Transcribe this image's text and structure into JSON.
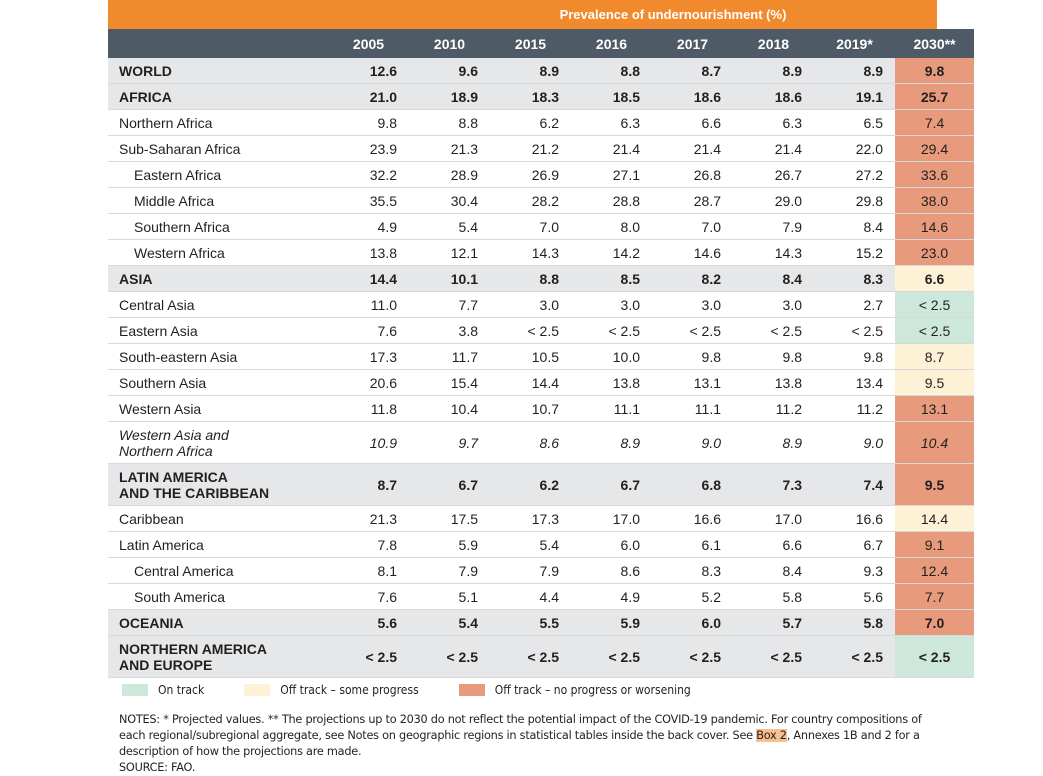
{
  "header": {
    "title": "Prevalence of undernourishment (%)",
    "columns": [
      "2005",
      "2010",
      "2015",
      "2016",
      "2017",
      "2018",
      "2019*",
      "2030**"
    ]
  },
  "rows": [
    {
      "label": "WORLD",
      "values": [
        "12.6",
        "9.6",
        "8.9",
        "8.8",
        "8.7",
        "8.9",
        "8.9"
      ],
      "proj": "9.8"
    },
    {
      "label": "AFRICA",
      "values": [
        "21.0",
        "18.9",
        "18.3",
        "18.5",
        "18.6",
        "18.6",
        "19.1"
      ],
      "proj": "25.7"
    },
    {
      "label": "Northern Africa",
      "values": [
        "9.8",
        "8.8",
        "6.2",
        "6.3",
        "6.6",
        "6.3",
        "6.5"
      ],
      "proj": "7.4"
    },
    {
      "label": "Sub-Saharan Africa",
      "values": [
        "23.9",
        "21.3",
        "21.2",
        "21.4",
        "21.4",
        "21.4",
        "22.0"
      ],
      "proj": "29.4"
    },
    {
      "label": "Eastern Africa",
      "values": [
        "32.2",
        "28.9",
        "26.9",
        "27.1",
        "26.8",
        "26.7",
        "27.2"
      ],
      "proj": "33.6"
    },
    {
      "label": "Middle Africa",
      "values": [
        "35.5",
        "30.4",
        "28.2",
        "28.8",
        "28.7",
        "29.0",
        "29.8"
      ],
      "proj": "38.0"
    },
    {
      "label": "Southern Africa",
      "values": [
        "4.9",
        "5.4",
        "7.0",
        "8.0",
        "7.0",
        "7.9",
        "8.4"
      ],
      "proj": "14.6"
    },
    {
      "label": "Western Africa",
      "values": [
        "13.8",
        "12.1",
        "14.3",
        "14.2",
        "14.6",
        "14.3",
        "15.2"
      ],
      "proj": "23.0"
    },
    {
      "label": "ASIA",
      "values": [
        "14.4",
        "10.1",
        "8.8",
        "8.5",
        "8.2",
        "8.4",
        "8.3"
      ],
      "proj": "6.6"
    },
    {
      "label": "Central Asia",
      "values": [
        "11.0",
        "7.7",
        "3.0",
        "3.0",
        "3.0",
        "3.0",
        "2.7"
      ],
      "proj": "< 2.5"
    },
    {
      "label": "Eastern Asia",
      "values": [
        "7.6",
        "3.8",
        "< 2.5",
        "< 2.5",
        "< 2.5",
        "< 2.5",
        "< 2.5"
      ],
      "proj": "< 2.5"
    },
    {
      "label": "South-eastern Asia",
      "values": [
        "17.3",
        "11.7",
        "10.5",
        "10.0",
        "9.8",
        "9.8",
        "9.8"
      ],
      "proj": "8.7"
    },
    {
      "label": "Southern Asia",
      "values": [
        "20.6",
        "15.4",
        "14.4",
        "13.8",
        "13.1",
        "13.8",
        "13.4"
      ],
      "proj": "9.5"
    },
    {
      "label": "Western Asia",
      "values": [
        "11.8",
        "10.4",
        "10.7",
        "11.1",
        "11.1",
        "11.2",
        "11.2"
      ],
      "proj": "13.1"
    },
    {
      "label_line1": "Western Asia and",
      "label_line2": "Northern Africa",
      "values": [
        "10.9",
        "9.7",
        "8.6",
        "8.9",
        "9.0",
        "8.9",
        "9.0"
      ],
      "proj": "10.4"
    },
    {
      "label_line1": "LATIN AMERICA",
      "label_line2": "AND THE CARIBBEAN",
      "values": [
        "8.7",
        "6.7",
        "6.2",
        "6.7",
        "6.8",
        "7.3",
        "7.4"
      ],
      "proj": "9.5"
    },
    {
      "label": "Caribbean",
      "values": [
        "21.3",
        "17.5",
        "17.3",
        "17.0",
        "16.6",
        "17.0",
        "16.6"
      ],
      "proj": "14.4"
    },
    {
      "label": "Latin America",
      "values": [
        "7.8",
        "5.9",
        "5.4",
        "6.0",
        "6.1",
        "6.6",
        "6.7"
      ],
      "proj": "9.1"
    },
    {
      "label": "Central America",
      "values": [
        "8.1",
        "7.9",
        "7.9",
        "8.6",
        "8.3",
        "8.4",
        "9.3"
      ],
      "proj": "12.4"
    },
    {
      "label": "South America",
      "values": [
        "7.6",
        "5.1",
        "4.4",
        "4.9",
        "5.2",
        "5.8",
        "5.6"
      ],
      "proj": "7.7"
    },
    {
      "label": "OCEANIA",
      "values": [
        "5.6",
        "5.4",
        "5.5",
        "5.9",
        "6.0",
        "5.7",
        "5.8"
      ],
      "proj": "7.0"
    },
    {
      "label_line1": "NORTHERN AMERICA",
      "label_line2": "AND EUROPE",
      "values": [
        "< 2.5",
        "< 2.5",
        "< 2.5",
        "< 2.5",
        "< 2.5",
        "< 2.5",
        "< 2.5"
      ],
      "proj": "< 2.5"
    }
  ],
  "legend": {
    "on_track": "On track",
    "some_progress": "Off track – some progress",
    "no_progress": "Off track – no progress or worsening",
    "colors": {
      "on_track": "#cde8db",
      "some_progress": "#fdf2d6",
      "no_progress": "#e79b7c"
    }
  },
  "notes": {
    "part1": "NOTES: * Projected values. ** The projections up to 2030 do not reflect the potential impact of the COVID-19 pandemic. For country compositions of each regional/subregional aggregate, see Notes on geographic regions in statistical tables inside the back cover. See ",
    "box": "Box 2",
    "part2": ", Annexes 1B and 2 for a description of how the projections are made.",
    "source": "SOURCE: FAO."
  }
}
